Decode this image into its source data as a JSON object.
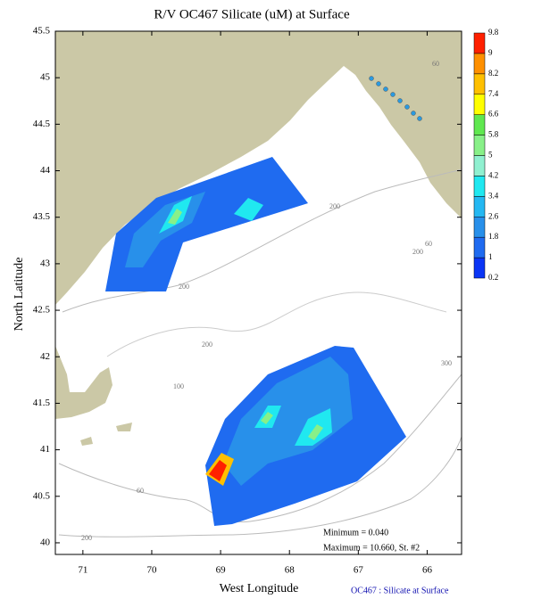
{
  "chart_data": {
    "type": "contour_map",
    "title": "R/V OC467 Silicate (uM) at Surface",
    "xlabel": "West Longitude",
    "ylabel": "North Latitude",
    "xlim": [
      71.4,
      65.5
    ],
    "ylim": [
      39.875,
      45.5
    ],
    "xticks": [
      71,
      70,
      69,
      68,
      67,
      66
    ],
    "yticks": [
      40,
      40.5,
      41,
      41.5,
      42,
      42.5,
      43,
      43.5,
      44,
      44.5,
      45,
      45.5
    ],
    "colorbar": {
      "levels": [
        0.2,
        1,
        1.8,
        2.6,
        3.4,
        4.2,
        5,
        5.8,
        6.6,
        7.4,
        8.2,
        9,
        9.8
      ],
      "colors": [
        "#0a35f5",
        "#1f6bf0",
        "#2890ea",
        "#24b8f2",
        "#20e8f0",
        "#90f0d0",
        "#88f088",
        "#60e850",
        "#ffff00",
        "#ffc000",
        "#ff9000",
        "#ff2000"
      ]
    },
    "contour_labels": [
      "60",
      "60",
      "60",
      "200",
      "200",
      "200",
      "200",
      "200",
      "100",
      "300"
    ],
    "annotations": [
      "Minimum = 0.040",
      "Maximum = 10.660, St. #2"
    ],
    "footer": "OC467 : Silicate at Surface"
  }
}
